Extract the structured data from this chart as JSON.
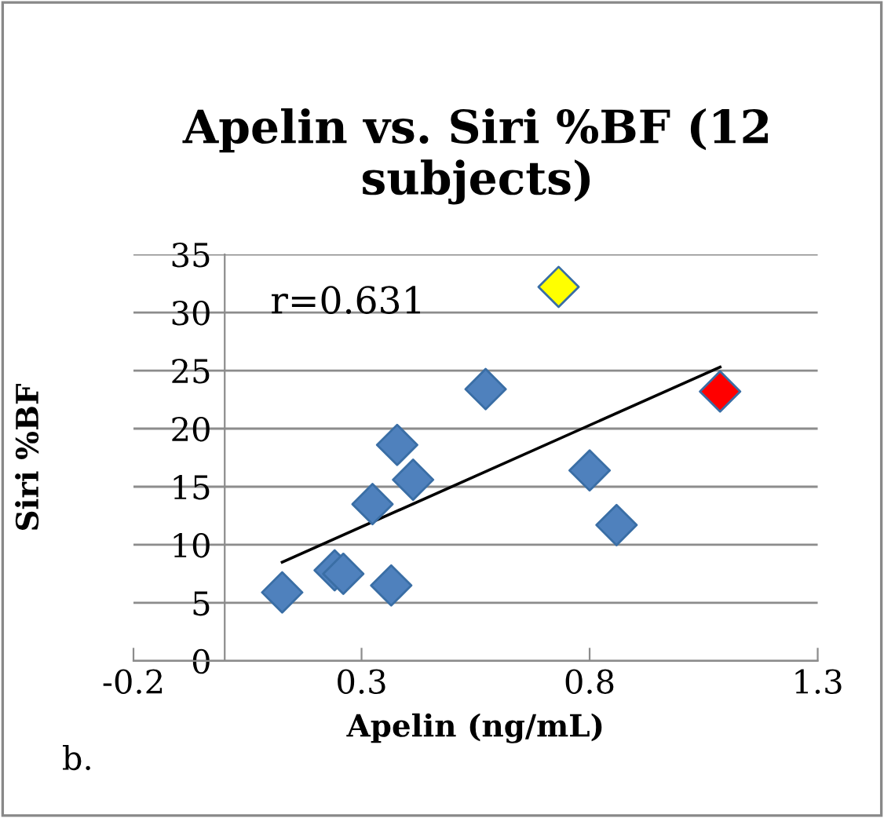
{
  "chart_data": {
    "type": "scatter",
    "title": "Apelin vs. Siri %BF (12 subjects)",
    "xlabel": "Apelin (ng/mL)",
    "ylabel": "Siri %BF",
    "annotations": [
      "r=0.631",
      "b."
    ],
    "series": [
      {
        "x": [
          0.126,
          0.241,
          0.26,
          0.365,
          0.324,
          0.378,
          0.413,
          0.572,
          0.732,
          0.8,
          0.859,
          1.086
        ],
        "values": [
          5.9,
          7.8,
          7.5,
          6.5,
          13.5,
          18.6,
          15.6,
          23.4,
          32.2,
          16.4,
          11.7,
          23.2
        ],
        "colors": [
          "#4f81bd",
          "#4f81bd",
          "#4f81bd",
          "#4f81bd",
          "#4f81bd",
          "#4f81bd",
          "#4f81bd",
          "#4f81bd",
          "#ffff00",
          "#4f81bd",
          "#4f81bd",
          "#ff0000"
        ],
        "marker": "diamond"
      },
      {
        "type": "line",
        "x": [
          0.126,
          1.086
        ],
        "values": [
          8.5,
          25.3
        ],
        "color": "#000000",
        "line_style": "solid",
        "marker": "none"
      }
    ],
    "xlim": [
      -0.2,
      1.3
    ],
    "xticks": [
      -0.2,
      0.3,
      0.8,
      1.3
    ],
    "ylim": [
      0,
      35
    ],
    "yticks": [
      0,
      5,
      10,
      15,
      20,
      25,
      30,
      35
    ],
    "grid": "y",
    "legend": false
  }
}
